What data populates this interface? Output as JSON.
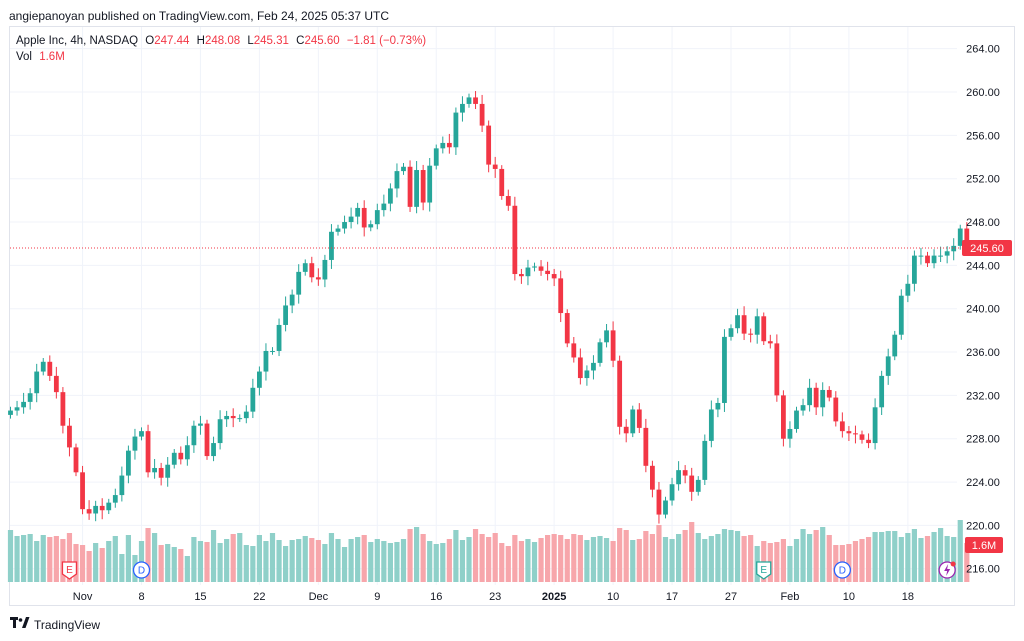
{
  "header": {
    "attribution": "angiepanoyan published on TradingView.com, Feb 24, 2025 05:37 UTC"
  },
  "legend": {
    "symbol": "Apple Inc, 4h, NASDAQ",
    "o_label": "O",
    "o_value": "247.44",
    "h_label": "H",
    "h_value": "248.08",
    "l_label": "L",
    "l_value": "245.31",
    "c_label": "C",
    "c_value": "245.60",
    "change": "−1.81 (−0.73%)",
    "vol_label": "Vol",
    "vol_value": "1.6M"
  },
  "footer": {
    "brand": "TradingView"
  },
  "colors": {
    "up": "#26a69a",
    "down": "#f23645",
    "up_vol": "#8fd0c9",
    "down_vol": "#f7a6ab",
    "grid": "#f0f3fa"
  },
  "chart_data": {
    "type": "candlestick",
    "title": "Apple Inc, 4h, NASDAQ",
    "ylim": [
      214.5,
      266
    ],
    "y_ticks": [
      "264.00",
      "260.00",
      "256.00",
      "252.00",
      "248.00",
      "244.00",
      "240.00",
      "236.00",
      "232.00",
      "228.00",
      "224.00",
      "220.00",
      "216.00"
    ],
    "y_tick_values": [
      264,
      260,
      256,
      252,
      248,
      244,
      240,
      236,
      232,
      228,
      224,
      220,
      216
    ],
    "x_ticks": [
      {
        "label": "Nov",
        "i": 11
      },
      {
        "label": "8",
        "i": 20
      },
      {
        "label": "15",
        "i": 29
      },
      {
        "label": "22",
        "i": 38
      },
      {
        "label": "Dec",
        "i": 47
      },
      {
        "label": "9",
        "i": 56
      },
      {
        "label": "16",
        "i": 65
      },
      {
        "label": "23",
        "i": 74
      },
      {
        "label": "2025",
        "i": 83
      },
      {
        "label": "10",
        "i": 92
      },
      {
        "label": "17",
        "i": 101
      },
      {
        "label": "27",
        "i": 110
      },
      {
        "label": "Feb",
        "i": 119
      },
      {
        "label": "10",
        "i": 128
      },
      {
        "label": "18",
        "i": 137
      }
    ],
    "last_price": "245.60",
    "last_volume": "1.6M",
    "events": [
      {
        "kind": "E",
        "i": 9
      },
      {
        "kind": "D",
        "i": 20
      },
      {
        "kind": "E",
        "i": 115
      },
      {
        "kind": "D",
        "i": 127
      },
      {
        "kind": "flash",
        "i": 143
      }
    ],
    "close": [
      230.6,
      230.9,
      231.4,
      232.2,
      234.2,
      235.1,
      233.8,
      232.3,
      229.2,
      227.2,
      224.9,
      221.5,
      221.1,
      221.8,
      221.4,
      222.1,
      222.8,
      224.6,
      226.9,
      228.2,
      228.7,
      224.9,
      225.3,
      224.4,
      225.6,
      226.7,
      226.1,
      227.4,
      229.2,
      229.4,
      226.4,
      227.6,
      229.8,
      230.1,
      229.9,
      229.9,
      230.5,
      232.7,
      234.2,
      236.1,
      236.1,
      238.5,
      240.3,
      241.3,
      243.4,
      244.2,
      242.9,
      242.7,
      244.5,
      247.1,
      247.4,
      248.0,
      248.5,
      249.3,
      247.5,
      247.8,
      249.1,
      249.7,
      251.1,
      252.7,
      253.1,
      249.4,
      252.8,
      249.8,
      253.2,
      254.8,
      255.3,
      254.9,
      258.1,
      258.9,
      259.5,
      258.9,
      256.9,
      253.3,
      252.9,
      250.4,
      249.5,
      243.2,
      243.0,
      243.8,
      243.9,
      243.5,
      243.2,
      242.8,
      239.6,
      236.8,
      235.5,
      233.6,
      234.3,
      235.0,
      236.9,
      238.0,
      235.2,
      229.1,
      228.5,
      230.7,
      229.0,
      225.5,
      223.3,
      221.0,
      222.3,
      223.8,
      225.1,
      224.6,
      223.1,
      224.2,
      227.8,
      230.7,
      231.3,
      237.4,
      238.2,
      239.4,
      237.7,
      237.6,
      239.3,
      237.0,
      236.8,
      232.0,
      228.0,
      228.9,
      230.6,
      231.1,
      232.7,
      230.9,
      232.5,
      231.8,
      229.6,
      228.7,
      228.5,
      228.4,
      227.9,
      227.6,
      230.9,
      233.8,
      235.6,
      237.6,
      241.2,
      242.3,
      244.9,
      244.9,
      244.2,
      244.9,
      244.9,
      245.3,
      245.8,
      247.4,
      245.6
    ],
    "volume": [
      0.52,
      0.46,
      0.47,
      0.48,
      0.41,
      0.47,
      0.45,
      0.46,
      0.43,
      0.49,
      0.38,
      0.37,
      0.31,
      0.39,
      0.34,
      0.41,
      0.46,
      0.28,
      0.47,
      0.27,
      0.41,
      0.54,
      0.49,
      0.37,
      0.38,
      0.35,
      0.33,
      0.26,
      0.45,
      0.41,
      0.4,
      0.52,
      0.39,
      0.43,
      0.48,
      0.49,
      0.37,
      0.36,
      0.47,
      0.41,
      0.49,
      0.42,
      0.36,
      0.42,
      0.43,
      0.46,
      0.44,
      0.42,
      0.38,
      0.49,
      0.43,
      0.35,
      0.43,
      0.45,
      0.47,
      0.4,
      0.43,
      0.41,
      0.39,
      0.4,
      0.43,
      0.53,
      0.55,
      0.48,
      0.41,
      0.38,
      0.39,
      0.43,
      0.52,
      0.42,
      0.45,
      0.53,
      0.48,
      0.45,
      0.49,
      0.39,
      0.36,
      0.47,
      0.41,
      0.43,
      0.4,
      0.44,
      0.47,
      0.48,
      0.47,
      0.43,
      0.48,
      0.47,
      0.42,
      0.45,
      0.46,
      0.44,
      0.41,
      0.54,
      0.52,
      0.42,
      0.43,
      0.51,
      0.48,
      0.57,
      0.45,
      0.43,
      0.48,
      0.52,
      0.6,
      0.49,
      0.43,
      0.46,
      0.48,
      0.53,
      0.52,
      0.51,
      0.46,
      0.47,
      0.36,
      0.41,
      0.39,
      0.4,
      0.43,
      0.36,
      0.43,
      0.53,
      0.48,
      0.52,
      0.55,
      0.47,
      0.37,
      0.37,
      0.38,
      0.41,
      0.43,
      0.45,
      0.5,
      0.5,
      0.51,
      0.51,
      0.45,
      0.49,
      0.53,
      0.44,
      0.46,
      0.5,
      0.54,
      0.46,
      0.45,
      0.62,
      0.39
    ],
    "volume_ylim": [
      0,
      1.0
    ]
  }
}
